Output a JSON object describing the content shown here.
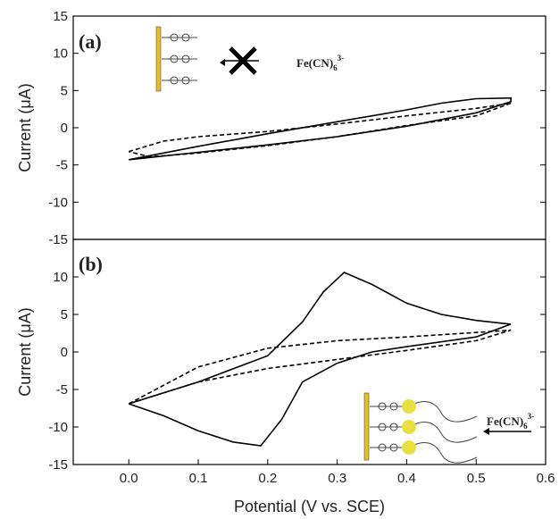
{
  "chart_data": [
    {
      "type": "line",
      "panel_label": "(a)",
      "ylabel": "Current (μA)",
      "annotation": {
        "text": "Fe(CN)",
        "sub": "6",
        "sup": "3-"
      },
      "xlim": [
        -0.08,
        0.6
      ],
      "ylim": [
        -15,
        15
      ],
      "yticks": [
        -15,
        -10,
        -5,
        0,
        5,
        10,
        15
      ],
      "series": [
        {
          "color": "#000000",
          "dashed": false,
          "x": [
            0,
            0.1,
            0.2,
            0.3,
            0.35,
            0.4,
            0.45,
            0.5,
            0.55,
            0.55,
            0.5,
            0.4,
            0.3,
            0.2,
            0.1,
            0.03,
            0
          ],
          "values": [
            -4.3,
            -2.5,
            -0.8,
            0.8,
            1.6,
            2.4,
            3.3,
            3.9,
            4.0,
            3.5,
            2.0,
            0.2,
            -1.2,
            -2.3,
            -3.3,
            -4.0,
            -4.3
          ]
        },
        {
          "color": "#000000",
          "dashed": true,
          "x": [
            0,
            0.05,
            0.1,
            0.2,
            0.3,
            0.4,
            0.5,
            0.55,
            0.5,
            0.4,
            0.3,
            0.2,
            0.1,
            0.03,
            0
          ],
          "values": [
            -3.2,
            -1.8,
            -1.2,
            -0.5,
            0.5,
            1.6,
            2.6,
            3.3,
            1.6,
            0.3,
            -1.2,
            -2.4,
            -3.4,
            -3.9,
            -3.2
          ]
        }
      ]
    },
    {
      "type": "line",
      "panel_label": "(b)",
      "ylabel": "Current (μA)",
      "xlabel": "Potential (V vs. SCE)",
      "annotation": {
        "text": "Fe(CN)",
        "sub": "6",
        "sup": "3-"
      },
      "xlim": [
        -0.08,
        0.6
      ],
      "ylim": [
        -15,
        15
      ],
      "yticks": [
        -15,
        -10,
        -5,
        0,
        5,
        10
      ],
      "xticks": [
        {
          "value": 0,
          "label": "0.0"
        },
        0.1,
        0.2,
        0.3,
        0.4,
        0.5,
        0.6
      ],
      "series": [
        {
          "color": "#000000",
          "dashed": false,
          "x": [
            0,
            0.1,
            0.2,
            0.25,
            0.28,
            0.31,
            0.35,
            0.4,
            0.45,
            0.5,
            0.55,
            0.5,
            0.4,
            0.35,
            0.3,
            0.25,
            0.22,
            0.19,
            0.15,
            0.1,
            0.05,
            0
          ],
          "values": [
            -6.9,
            -4,
            -0.5,
            4,
            8,
            10.6,
            9,
            6.5,
            5,
            4.2,
            3.7,
            2,
            0.7,
            0,
            -1.5,
            -4,
            -9,
            -12.5,
            -12,
            -10.5,
            -8.5,
            -6.9
          ]
        },
        {
          "color": "#000000",
          "dashed": true,
          "x": [
            0,
            0.1,
            0.2,
            0.3,
            0.4,
            0.5,
            0.55,
            0.5,
            0.4,
            0.3,
            0.2,
            0.1,
            0
          ],
          "values": [
            -6.9,
            -2,
            0.5,
            1.5,
            2,
            2.6,
            2.9,
            1.5,
            0.2,
            -1,
            -2.2,
            -4,
            -6.9
          ]
        }
      ]
    }
  ]
}
